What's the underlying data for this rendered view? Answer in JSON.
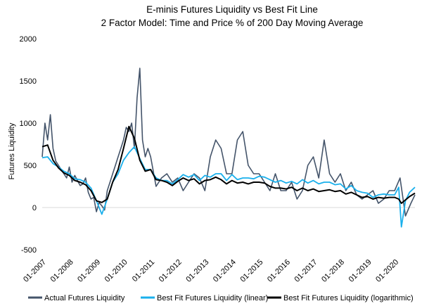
{
  "chart_data": {
    "type": "line",
    "title": "E-minis Futures Liquidity vs Best Fit Line",
    "subtitle": "2 Factor Model: Time and Price % of 200 Day Moving Average",
    "xlabel": "",
    "ylabel": "Futures Liquidity",
    "ylim": [
      -500,
      2000
    ],
    "yticks": [
      "-500",
      "0",
      "500",
      "1000",
      "1500",
      "2000"
    ],
    "xlim": [
      2007.0,
      2020.75
    ],
    "xticks": [
      "01-2007",
      "01-2008",
      "01-2009",
      "01-2010",
      "01-2011",
      "01-2012",
      "01-2013",
      "01-2014",
      "01-2015",
      "01-2016",
      "01-2017",
      "01-2018",
      "01-2019",
      "01-2020"
    ],
    "legend_position": "bottom",
    "series": [
      {
        "name": "Actual Futures Liquidity",
        "color": "#44546a",
        "x": [
          2007.0,
          2007.1,
          2007.2,
          2007.3,
          2007.4,
          2007.5,
          2007.6,
          2007.7,
          2007.8,
          2007.9,
          2008.0,
          2008.1,
          2008.2,
          2008.3,
          2008.4,
          2008.5,
          2008.6,
          2008.7,
          2008.8,
          2008.9,
          2009.0,
          2009.1,
          2009.2,
          2009.3,
          2009.4,
          2009.5,
          2009.6,
          2009.7,
          2009.8,
          2009.9,
          2010.0,
          2010.1,
          2010.2,
          2010.3,
          2010.4,
          2010.5,
          2010.6,
          2010.7,
          2010.8,
          2010.9,
          2011.0,
          2011.2,
          2011.4,
          2011.6,
          2011.8,
          2012.0,
          2012.2,
          2012.4,
          2012.6,
          2012.8,
          2013.0,
          2013.2,
          2013.4,
          2013.6,
          2013.8,
          2014.0,
          2014.2,
          2014.4,
          2014.6,
          2014.8,
          2015.0,
          2015.2,
          2015.4,
          2015.6,
          2015.8,
          2016.0,
          2016.2,
          2016.4,
          2016.6,
          2016.8,
          2017.0,
          2017.2,
          2017.4,
          2017.6,
          2017.8,
          2018.0,
          2018.2,
          2018.4,
          2018.6,
          2018.8,
          2019.0,
          2019.2,
          2019.4,
          2019.6,
          2019.8,
          2020.0,
          2020.2,
          2020.4,
          2020.6,
          2020.75
        ],
        "values": [
          600,
          1000,
          800,
          1100,
          700,
          550,
          500,
          450,
          400,
          350,
          480,
          300,
          380,
          320,
          260,
          280,
          350,
          180,
          100,
          120,
          -50,
          60,
          20,
          -30,
          200,
          300,
          400,
          500,
          600,
          700,
          800,
          950,
          900,
          1000,
          700,
          1300,
          1650,
          800,
          600,
          700,
          600,
          250,
          350,
          400,
          300,
          350,
          200,
          300,
          400,
          350,
          200,
          600,
          800,
          700,
          400,
          400,
          800,
          900,
          500,
          400,
          400,
          300,
          200,
          400,
          200,
          200,
          300,
          100,
          200,
          500,
          600,
          350,
          800,
          400,
          300,
          400,
          200,
          300,
          150,
          100,
          150,
          200,
          50,
          100,
          200,
          200,
          350,
          -100,
          50,
          150
        ]
      },
      {
        "name": "Best Fit Futures Liquidity (linear)",
        "color": "#1ab0ec",
        "x": [
          2007.0,
          2007.2,
          2007.4,
          2007.6,
          2007.8,
          2008.0,
          2008.2,
          2008.4,
          2008.6,
          2008.8,
          2009.0,
          2009.2,
          2009.4,
          2009.6,
          2009.8,
          2010.0,
          2010.2,
          2010.4,
          2010.6,
          2010.8,
          2011.0,
          2011.2,
          2011.4,
          2011.6,
          2011.8,
          2012.0,
          2012.2,
          2012.4,
          2012.6,
          2012.8,
          2013.0,
          2013.2,
          2013.4,
          2013.6,
          2013.8,
          2014.0,
          2014.2,
          2014.4,
          2014.6,
          2014.8,
          2015.0,
          2015.2,
          2015.4,
          2015.6,
          2015.8,
          2016.0,
          2016.2,
          2016.4,
          2016.6,
          2016.8,
          2017.0,
          2017.2,
          2017.4,
          2017.6,
          2017.8,
          2018.0,
          2018.2,
          2018.4,
          2018.6,
          2018.8,
          2019.0,
          2019.2,
          2019.4,
          2019.6,
          2019.8,
          2020.0,
          2020.15,
          2020.25,
          2020.4,
          2020.55,
          2020.75
        ],
        "values": [
          590,
          600,
          520,
          480,
          430,
          400,
          340,
          330,
          300,
          230,
          80,
          -80,
          100,
          300,
          400,
          560,
          650,
          720,
          580,
          450,
          450,
          350,
          320,
          320,
          280,
          330,
          390,
          360,
          390,
          320,
          380,
          360,
          400,
          400,
          320,
          390,
          330,
          350,
          350,
          340,
          370,
          360,
          330,
          300,
          320,
          290,
          310,
          280,
          330,
          290,
          320,
          280,
          300,
          300,
          270,
          280,
          220,
          260,
          200,
          180,
          170,
          120,
          150,
          160,
          150,
          150,
          240,
          -230,
          80,
          180,
          240
        ]
      },
      {
        "name": "Best Fit Futures Liquidity (logarithmic)",
        "color": "#000000",
        "x": [
          2007.0,
          2007.2,
          2007.4,
          2007.6,
          2007.8,
          2008.0,
          2008.2,
          2008.4,
          2008.6,
          2008.8,
          2009.0,
          2009.2,
          2009.4,
          2009.6,
          2009.8,
          2010.0,
          2010.2,
          2010.4,
          2010.6,
          2010.8,
          2011.0,
          2011.2,
          2011.4,
          2011.6,
          2011.8,
          2012.0,
          2012.2,
          2012.4,
          2012.6,
          2012.8,
          2013.0,
          2013.2,
          2013.4,
          2013.6,
          2013.8,
          2014.0,
          2014.2,
          2014.4,
          2014.6,
          2014.8,
          2015.0,
          2015.2,
          2015.4,
          2015.6,
          2015.8,
          2016.0,
          2016.2,
          2016.4,
          2016.6,
          2016.8,
          2017.0,
          2017.2,
          2017.4,
          2017.6,
          2017.8,
          2018.0,
          2018.2,
          2018.4,
          2018.6,
          2018.8,
          2019.0,
          2019.2,
          2019.4,
          2019.6,
          2019.8,
          2020.0,
          2020.15,
          2020.25,
          2020.4,
          2020.55,
          2020.75
        ],
        "values": [
          720,
          740,
          560,
          470,
          410,
          380,
          320,
          300,
          270,
          200,
          80,
          60,
          100,
          300,
          450,
          700,
          960,
          820,
          560,
          430,
          450,
          330,
          320,
          300,
          260,
          310,
          350,
          320,
          340,
          280,
          320,
          330,
          360,
          330,
          280,
          320,
          290,
          300,
          280,
          300,
          300,
          290,
          250,
          230,
          230,
          220,
          240,
          200,
          230,
          200,
          220,
          190,
          200,
          210,
          190,
          200,
          160,
          180,
          150,
          120,
          130,
          100,
          120,
          110,
          120,
          120,
          100,
          50,
          90,
          130,
          170
        ]
      }
    ]
  }
}
